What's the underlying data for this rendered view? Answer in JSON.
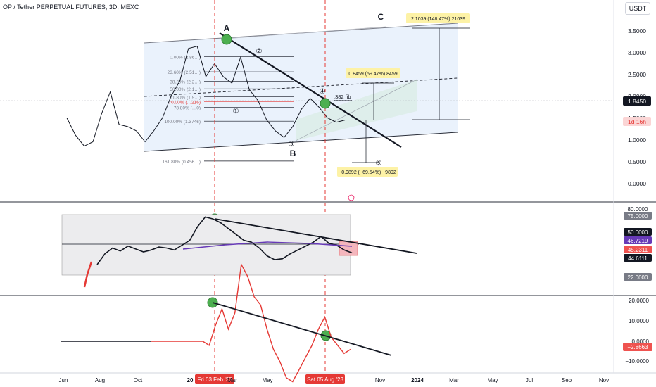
{
  "header": {
    "title": "OP / Tether PERPETUAL FUTURES, 3D, MEXC",
    "currency_button": "USDT"
  },
  "colors": {
    "green_marker": "#4caf50",
    "red_dash": "#e53935",
    "channel_fill": "#e3edfb",
    "price_label_bg": "#131722",
    "countdown_bg": "#fbd5d5",
    "label_yellow": "#fdf2a6",
    "rsi_band": "#ececee",
    "rsi_ma": "#673ab7"
  },
  "chart_data": [
    {
      "type": "line",
      "name": "price",
      "y_axis_ticks": [
        "3.5000",
        "3.0000",
        "2.5000",
        "2.0000",
        "1.5000",
        "1.0000",
        "0.5000",
        "0.0000"
      ],
      "current_price": "1.8450",
      "countdown": "1d 16h",
      "wave_labels": [
        "A",
        "B",
        "C"
      ],
      "sub_wave_labels": [
        "①",
        "②",
        "③",
        "④",
        "⑤"
      ],
      "fib_levels": [
        {
          "label": "0.00% (2.86…)",
          "value": 2.86
        },
        {
          "label": "23.60% (2.51…)",
          "value": 2.51
        },
        {
          "label": "38.20% (2.2…)",
          "value": 2.29
        },
        {
          "label": "50.00% (2.1…)",
          "value": 2.12
        },
        {
          "label": "61.80% (1.9…)",
          "value": 1.94
        },
        {
          "label": "70.00% (…216)",
          "value": 1.82
        },
        {
          "label": "78.80% (…0)",
          "value": 1.69
        },
        {
          "label": "100.00% (1.3746)",
          "value": 1.3746
        },
        {
          "label": "161.80% (0.456…)",
          "value": 0.456
        }
      ],
      "annotations": {
        "fib_382": ".382 fib",
        "upper_target": "2.1039 (148.47%) 21039",
        "mid_target": "0.8459 (59.47%) 8459",
        "lower_target": "−0.9892 (−69.54%) −9892"
      },
      "series": [
        {
          "values": [
            1.45,
            1.05,
            0.8,
            0.9,
            1.55,
            2.05,
            1.3,
            1.25,
            1.15,
            0.9,
            1.15,
            1.45,
            1.95,
            2.3,
            3.05,
            3.1,
            2.4,
            2.7,
            2.4,
            2.25,
            2.85,
            2.1,
            1.85,
            1.4,
            1.15,
            1.0,
            1.25,
            1.65,
            1.9,
            1.7,
            1.45,
            1.35,
            1.4
          ]
        }
      ]
    },
    {
      "type": "line",
      "name": "rsi",
      "levels": [
        80,
        75,
        50,
        22
      ],
      "level_labels": [
        "80.0000",
        "75.0000",
        "50.0000",
        "22.0000"
      ],
      "values_labels": [
        "46.7219",
        "45.2311",
        "44.6111"
      ],
      "series": [
        {
          "values": [
            29,
            40,
            46,
            43,
            48,
            45,
            42,
            44,
            47,
            46,
            44,
            49,
            54,
            68,
            78,
            76,
            72,
            66,
            60,
            54,
            52,
            46,
            38,
            34,
            35,
            40,
            44,
            48,
            52,
            58,
            51,
            49,
            44,
            41
          ]
        }
      ]
    },
    {
      "type": "line",
      "name": "oscillator",
      "ticks": [
        "20.0000",
        "10.0000",
        "0.0000",
        "−10.0000"
      ],
      "current_value": "−2.8663",
      "series": [
        {
          "values": [
            0,
            0,
            0,
            0,
            0,
            0,
            0,
            0,
            0,
            -1,
            4,
            8,
            3,
            7,
            19,
            16,
            11,
            9,
            3,
            -2,
            -5,
            -9,
            -10,
            -7,
            -4,
            -1,
            3,
            6,
            1,
            -1,
            -3,
            -2
          ]
        }
      ]
    }
  ],
  "x_axis": {
    "labels": [
      "Jun",
      "Aug",
      "Oct",
      "20",
      "Fri 03 Feb '23",
      "Mar",
      "May",
      "J",
      "Sat 05 Aug '23",
      "Nov",
      "2024",
      "Mar",
      "May",
      "Jul",
      "Sep",
      "Nov"
    ]
  }
}
